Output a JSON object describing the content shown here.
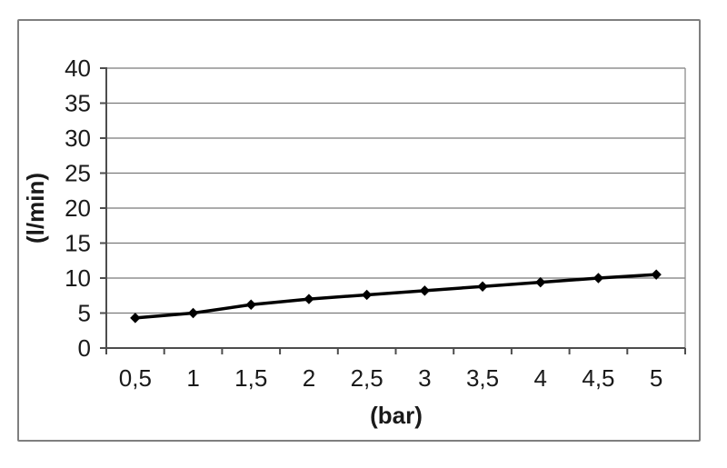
{
  "chart_data": {
    "type": "line",
    "x": [
      0.5,
      1,
      1.5,
      2,
      2.5,
      3,
      3.5,
      4,
      4.5,
      5
    ],
    "x_tick_labels": [
      "0,5",
      "1",
      "1,5",
      "2",
      "2,5",
      "3",
      "3,5",
      "4",
      "4,5",
      "5"
    ],
    "values": [
      4.3,
      5.0,
      6.2,
      7.0,
      7.6,
      8.2,
      8.8,
      9.4,
      10.0,
      10.5
    ],
    "xlabel": "(bar)",
    "ylabel": "(l/min)",
    "ylim": [
      0,
      40
    ],
    "y_tick_step": 5,
    "y_tick_labels": [
      "0",
      "5",
      "10",
      "15",
      "20",
      "25",
      "30",
      "35",
      "40"
    ],
    "grid": "horizontal",
    "legend": "none",
    "marker": "diamond",
    "colors": {
      "series_line": "#000000",
      "marker_fill": "#000000",
      "gridline": "#7a7a7a",
      "axis_line": "#4d4d4d",
      "plot_border": "#8c8c8c",
      "chart_frame": "#7f7f7f",
      "text": "#1a1a1a",
      "background": "#ffffff"
    }
  }
}
